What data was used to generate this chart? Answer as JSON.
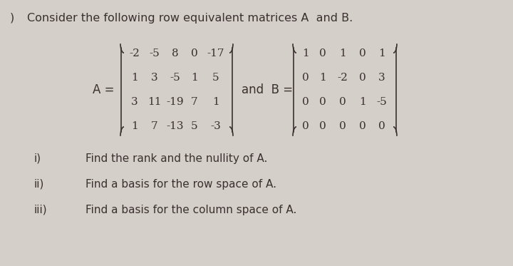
{
  "bg_color": "#d4cfc8",
  "title_text": "Consider the following row equivalent matrices A  and B.",
  "title_prefix": ")  ",
  "A_matrix": [
    [
      "-2",
      "-5",
      "8",
      "0",
      "-17"
    ],
    [
      "1",
      "3",
      "-5",
      "1",
      "5"
    ],
    [
      "3",
      "11",
      "-19",
      "7",
      "1"
    ],
    [
      "1",
      "7",
      "-13",
      "5",
      "-3"
    ]
  ],
  "B_matrix": [
    [
      "1",
      "0",
      "1",
      "0",
      "1"
    ],
    [
      "0",
      "1",
      "-2",
      "0",
      "3"
    ],
    [
      "0",
      "0",
      "0",
      "1",
      "-5"
    ],
    [
      "0",
      "0",
      "0",
      "0",
      "0"
    ]
  ],
  "items": [
    {
      "label": "i)",
      "text": "Find the rank and the nullity of A."
    },
    {
      "label": "ii)",
      "text": "Find a basis for the row space of A."
    },
    {
      "label": "iii)",
      "text": "Find a basis for the column space of A."
    }
  ],
  "font_size_title": 11.5,
  "font_size_matrix": 11,
  "font_size_items": 11,
  "text_color": "#3a3030"
}
